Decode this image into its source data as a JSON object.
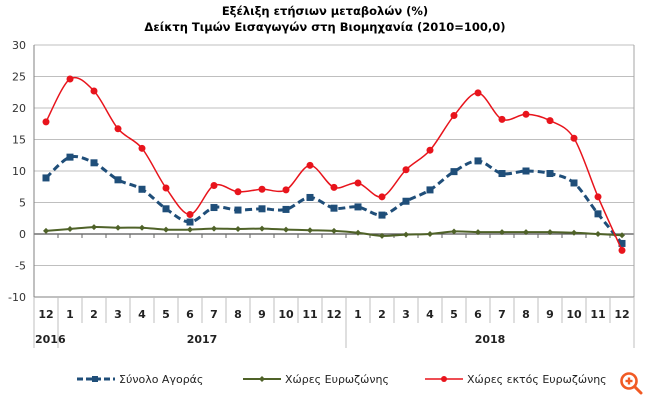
{
  "title": {
    "line1": "Εξέλιξη ετήσιων μεταβολών (%)",
    "line2": "Δείκτη Τιμών Εισαγωγών στη Βιομηχανία (2010=100,0)"
  },
  "legend": {
    "items": [
      {
        "label": "Σύνολο Αγοράς",
        "color": "#1F4E79",
        "style": "dashed-square"
      },
      {
        "label": "Χώρες Ευρωζώνης",
        "color": "#4F6228",
        "style": "solid-diamond"
      },
      {
        "label": "Χώρες εκτός Ευρωζώνης",
        "color": "#E8141C",
        "style": "solid-circle"
      }
    ]
  },
  "zoom_icon": {
    "name": "zoom-in-icon",
    "color": "#F15A24"
  },
  "chart_data": {
    "type": "line",
    "title": "Εξέλιξη ετήσιων μεταβολών (%) Δείκτη Τιμών Εισαγωγών στη Βιομηχανία (2010=100,0)",
    "xlabel": "",
    "ylabel": "",
    "ylim": [
      -10,
      30
    ],
    "yticks": [
      -10,
      -5,
      0,
      5,
      10,
      15,
      20,
      25,
      30
    ],
    "grid": true,
    "legend_position": "bottom",
    "categories": [
      "12",
      "1",
      "2",
      "3",
      "4",
      "5",
      "6",
      "7",
      "8",
      "9",
      "10",
      "11",
      "12",
      "1",
      "2",
      "3",
      "4",
      "5",
      "6",
      "7",
      "8",
      "9",
      "10",
      "11",
      "12"
    ],
    "year_groups": [
      {
        "label": "2016",
        "start": 0,
        "count": 1
      },
      {
        "label": "2017",
        "start": 1,
        "count": 12
      },
      {
        "label": "2018",
        "start": 13,
        "count": 12
      }
    ],
    "series": [
      {
        "name": "Σύνολο Αγοράς",
        "color": "#1F4E79",
        "values": [
          8.9,
          12.2,
          11.3,
          8.6,
          7.1,
          4.0,
          1.9,
          4.2,
          3.8,
          4.0,
          3.9,
          5.8,
          4.1,
          4.3,
          3.0,
          5.2,
          7.0,
          9.9,
          11.6,
          9.6,
          10.0,
          9.6,
          8.1,
          3.2,
          -1.5
        ]
      },
      {
        "name": "Χώρες Ευρωζώνης",
        "color": "#4F6228",
        "values": [
          0.5,
          0.8,
          1.1,
          1.0,
          1.0,
          0.7,
          0.7,
          0.85,
          0.8,
          0.85,
          0.7,
          0.6,
          0.5,
          0.2,
          -0.3,
          -0.1,
          0.0,
          0.4,
          0.3,
          0.3,
          0.3,
          0.3,
          0.2,
          0.0,
          -0.2
        ]
      },
      {
        "name": "Χώρες εκτός Ευρωζώνης",
        "color": "#E8141C",
        "values": [
          17.8,
          24.6,
          22.7,
          16.7,
          13.6,
          7.3,
          3.1,
          7.7,
          6.7,
          7.1,
          7.0,
          10.9,
          7.4,
          8.1,
          5.9,
          10.2,
          13.3,
          18.8,
          22.4,
          18.2,
          19.0,
          18.0,
          15.2,
          5.9,
          -2.6
        ]
      }
    ]
  }
}
